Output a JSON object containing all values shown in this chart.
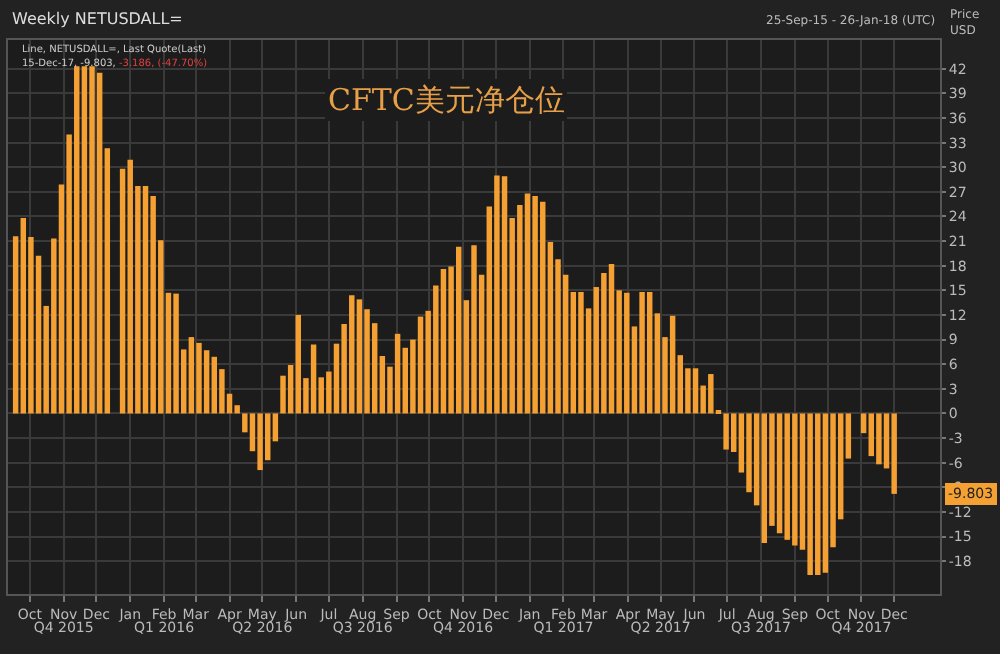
{
  "chart_data": {
    "type": "bar",
    "title": "Weekly NETUSDALL=",
    "subtitle": "CFTC美元净仓位",
    "ylabel": "Price\nUSD",
    "annotations": [
      "Line, NETUSDALL=, Last Quote(Last)",
      "15-Dec-17, -9.803, ",
      "-3.186, (-47.70%)",
      "25-Sep-15 - 26-Jan-18 (UTC)",
      "-9.803"
    ],
    "x": [
      "2015-10-02",
      "2015-10-09",
      "2015-10-16",
      "2015-10-23",
      "2015-10-30",
      "2015-11-06",
      "2015-11-13",
      "2015-11-20",
      "2015-11-27",
      "2015-12-04",
      "2015-12-11",
      "2015-12-18",
      "2015-12-25",
      "2016-01-01",
      "2016-01-08",
      "2016-01-15",
      "2016-01-22",
      "2016-01-29",
      "2016-02-05",
      "2016-02-12",
      "2016-02-19",
      "2016-02-26",
      "2016-03-04",
      "2016-03-11",
      "2016-03-18",
      "2016-03-25",
      "2016-04-01",
      "2016-04-08",
      "2016-04-15",
      "2016-04-22",
      "2016-04-29",
      "2016-05-06",
      "2016-05-13",
      "2016-05-20",
      "2016-05-27",
      "2016-06-03",
      "2016-06-10",
      "2016-06-17",
      "2016-06-24",
      "2016-07-01",
      "2016-07-08",
      "2016-07-15",
      "2016-07-22",
      "2016-07-29",
      "2016-08-05",
      "2016-08-12",
      "2016-08-19",
      "2016-08-26",
      "2016-09-02",
      "2016-09-09",
      "2016-09-16",
      "2016-09-23",
      "2016-09-30",
      "2016-10-07",
      "2016-10-14",
      "2016-10-21",
      "2016-10-28",
      "2016-11-04",
      "2016-11-11",
      "2016-11-18",
      "2016-11-25",
      "2016-12-02",
      "2016-12-09",
      "2016-12-16",
      "2016-12-23",
      "2016-12-30",
      "2017-01-06",
      "2017-01-13",
      "2017-01-20",
      "2017-01-27",
      "2017-02-03",
      "2017-02-10",
      "2017-02-17",
      "2017-02-24",
      "2017-03-03",
      "2017-03-10",
      "2017-03-17",
      "2017-03-24",
      "2017-03-31",
      "2017-04-07",
      "2017-04-14",
      "2017-04-21",
      "2017-04-28",
      "2017-05-05",
      "2017-05-12",
      "2017-05-19",
      "2017-05-26",
      "2017-06-02",
      "2017-06-09",
      "2017-06-16",
      "2017-06-23",
      "2017-06-30",
      "2017-07-07",
      "2017-07-14",
      "2017-07-21",
      "2017-07-28",
      "2017-08-04",
      "2017-08-11",
      "2017-08-18",
      "2017-08-25",
      "2017-09-01",
      "2017-09-08",
      "2017-09-15",
      "2017-09-22",
      "2017-09-29",
      "2017-10-06",
      "2017-10-13",
      "2017-10-20",
      "2017-10-27",
      "2017-11-03",
      "2017-11-10",
      "2017-11-17",
      "2017-11-24",
      "2017-12-01",
      "2017-12-08",
      "2017-12-15"
    ],
    "values": [
      21.6,
      23.8,
      21.5,
      19.2,
      13.1,
      21.3,
      27.9,
      34.0,
      42.3,
      42.3,
      42.3,
      41.5,
      32.3,
      null,
      29.8,
      30.9,
      27.7,
      27.7,
      26.5,
      21.1,
      14.7,
      14.6,
      7.8,
      9.3,
      8.6,
      7.7,
      6.9,
      5.4,
      2.4,
      1.0,
      -2.3,
      -4.6,
      -6.9,
      -5.7,
      -3.4,
      4.6,
      5.9,
      12.0,
      4.3,
      8.4,
      4.4,
      5.1,
      8.5,
      10.9,
      14.4,
      13.9,
      12.7,
      11.0,
      7.0,
      5.7,
      9.7,
      8.0,
      9.0,
      11.8,
      12.5,
      15.6,
      17.6,
      17.9,
      20.3,
      13.8,
      20.5,
      16.9,
      25.2,
      29.0,
      28.9,
      23.8,
      25.4,
      26.8,
      26.5,
      25.8,
      20.9,
      18.8,
      16.9,
      14.8,
      14.8,
      12.8,
      15.4,
      17.1,
      18.2,
      15.0,
      14.7,
      10.6,
      14.8,
      14.8,
      12.2,
      9.3,
      11.9,
      7.1,
      5.5,
      5.5,
      3.4,
      4.8,
      0.4,
      -4.4,
      -4.7,
      -7.2,
      -9.6,
      -11.2,
      -15.8,
      -13.7,
      -14.6,
      -15.4,
      -16.1,
      -16.6,
      -19.7,
      -19.7,
      -19.4,
      -16.3,
      -12.9,
      -5.5,
      null,
      -2.4,
      -5.2,
      -6.2,
      -6.7,
      -9.803
    ],
    "color": "#f5a033",
    "xlim": [
      "2015-09-25",
      "2018-01-26"
    ],
    "xticks": [
      {
        "value": "2015-10-15",
        "label": "Oct"
      },
      {
        "value": "2015-11-15",
        "label": "Nov"
      },
      {
        "value": "2015-12-15",
        "label": "Dec"
      },
      {
        "value": "2016-01-15",
        "label": "Jan"
      },
      {
        "value": "2016-02-15",
        "label": "Feb"
      },
      {
        "value": "2016-03-15",
        "label": "Mar"
      },
      {
        "value": "2016-04-15",
        "label": "Apr"
      },
      {
        "value": "2016-05-15",
        "label": "May"
      },
      {
        "value": "2016-06-15",
        "label": "Jun"
      },
      {
        "value": "2016-07-15",
        "label": "Jul"
      },
      {
        "value": "2016-08-15",
        "label": "Aug"
      },
      {
        "value": "2016-09-15",
        "label": "Sep"
      },
      {
        "value": "2016-10-15",
        "label": "Oct"
      },
      {
        "value": "2016-11-15",
        "label": "Nov"
      },
      {
        "value": "2016-12-15",
        "label": "Dec"
      },
      {
        "value": "2017-01-15",
        "label": "Jan"
      },
      {
        "value": "2017-02-15",
        "label": "Feb"
      },
      {
        "value": "2017-03-15",
        "label": "Mar"
      },
      {
        "value": "2017-04-15",
        "label": "Apr"
      },
      {
        "value": "2017-05-15",
        "label": "May"
      },
      {
        "value": "2017-06-15",
        "label": "Jun"
      },
      {
        "value": "2017-07-15",
        "label": "Jul"
      },
      {
        "value": "2017-08-15",
        "label": "Aug"
      },
      {
        "value": "2017-09-15",
        "label": "Sep"
      },
      {
        "value": "2017-10-15",
        "label": "Oct"
      },
      {
        "value": "2017-11-15",
        "label": "Nov"
      },
      {
        "value": "2017-12-15",
        "label": "Dec"
      }
    ],
    "x2lim": [
      "2015-09-25",
      "2018-01-26"
    ],
    "x2ticks": [
      {
        "value": "2015-11-15",
        "label": "Q4 2015"
      },
      {
        "value": "2016-02-15",
        "label": "Q1 2016"
      },
      {
        "value": "2016-05-15",
        "label": "Q2 2016"
      },
      {
        "value": "2016-08-15",
        "label": "Q3 2016"
      },
      {
        "value": "2016-11-15",
        "label": "Q4 2016"
      },
      {
        "value": "2017-02-15",
        "label": "Q1 2017"
      },
      {
        "value": "2017-05-15",
        "label": "Q2 2017"
      },
      {
        "value": "2017-08-15",
        "label": "Q3 2017"
      },
      {
        "value": "2017-11-15",
        "label": "Q4 2017"
      }
    ],
    "ylim": [
      -22,
      45.5
    ],
    "yticks": [
      -18,
      -15,
      -12,
      -9,
      -6,
      -3,
      0,
      3,
      6,
      9,
      12,
      15,
      18,
      21,
      24,
      27,
      30,
      33,
      36,
      39,
      42
    ],
    "grid": true,
    "legend": false
  }
}
